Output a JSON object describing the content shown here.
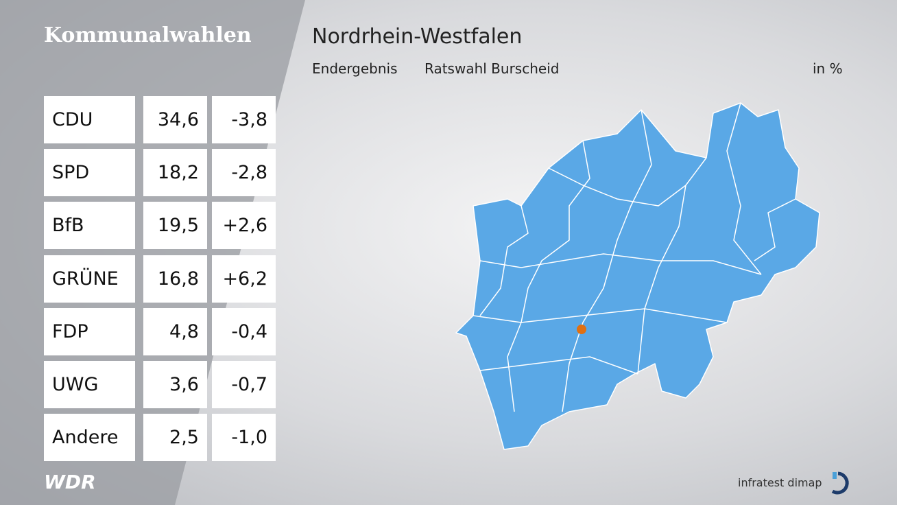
{
  "header": {
    "title": "Kommunalwahlen"
  },
  "region": {
    "title": "Nordrhein-Westfalen",
    "subtitle": "Endergebnis",
    "location": "Ratswahl Burscheid",
    "unit": "in %"
  },
  "table": {
    "rows": [
      [
        "CDU",
        "34,6",
        "-3,8"
      ],
      [
        "SPD",
        "18,2",
        "-2,8"
      ],
      [
        "BfB",
        "19,5",
        "+2,6"
      ],
      [
        "GRÜNE",
        "16,8",
        "+6,2"
      ],
      [
        "FDP",
        "4,8",
        "-0,4"
      ],
      [
        "UWG",
        "3,6",
        "-0,7"
      ],
      [
        "Andere",
        "2,5",
        "-1,0"
      ]
    ]
  },
  "footer": {
    "broadcaster": "WDR",
    "source": "infratest dimap"
  }
}
